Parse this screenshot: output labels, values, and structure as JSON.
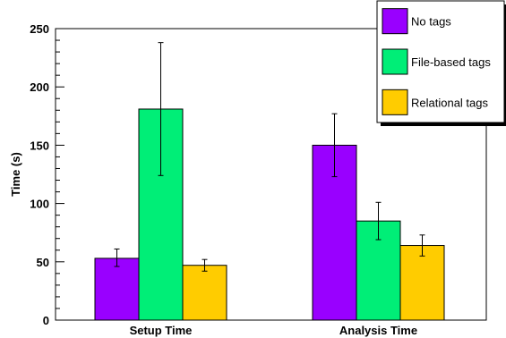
{
  "chart_data": {
    "type": "bar",
    "title": "",
    "xlabel": "",
    "ylabel": "Time (s)",
    "ylim": [
      0,
      250
    ],
    "yticks": [
      0,
      50,
      100,
      150,
      200,
      250
    ],
    "grid": false,
    "legend_position": "top-right",
    "categories": [
      "Setup Time",
      "Analysis Time"
    ],
    "series": [
      {
        "name": "No tags",
        "color": "#9900ff",
        "values": [
          53,
          150
        ],
        "error_low": [
          46,
          123
        ],
        "error_high": [
          61,
          177
        ]
      },
      {
        "name": "File-based tags",
        "color": "#00ee77",
        "values": [
          181,
          85
        ],
        "error_low": [
          124,
          69
        ],
        "error_high": [
          238,
          101
        ]
      },
      {
        "name": "Relational tags",
        "color": "#ffcc00",
        "values": [
          47,
          64
        ],
        "error_low": [
          42,
          55
        ],
        "error_high": [
          52,
          73
        ]
      }
    ]
  }
}
